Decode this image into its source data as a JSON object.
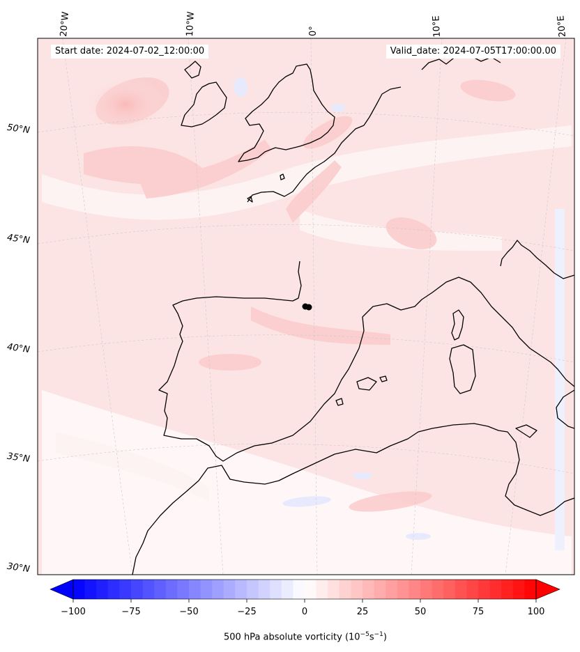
{
  "header": {
    "start_date": "Start date: 2024-07-02_12:00:00",
    "valid_date": "Valid_date: 2024-07-05T17:00:00.00"
  },
  "graticule": {
    "lon_labels": [
      "20°W",
      "10°W",
      "0°",
      "10°E",
      "20°E"
    ],
    "lat_labels": [
      "50°N",
      "45°N",
      "40°N",
      "35°N",
      "30°N"
    ]
  },
  "map": {
    "field": "500 hPa absolute vorticity",
    "fill_colors": {
      "weak_positive": "#fde6e6",
      "moderate_positive": "#fbcfcf",
      "negative": "#e8ecfd",
      "coast": "#000000"
    },
    "marker": "cyclone-center-dot"
  },
  "colorbar": {
    "ticks": [
      "−100",
      "−75",
      "−50",
      "−25",
      "0",
      "25",
      "50",
      "75",
      "100"
    ],
    "min_color": "#0000ff",
    "mid_color": "#ffffff",
    "max_color": "#ff0000",
    "label_text": "500 hPa absolute vorticity (10",
    "label_exp1": "−5",
    "label_mid": "s",
    "label_exp2": "−1",
    "label_end": ")"
  }
}
